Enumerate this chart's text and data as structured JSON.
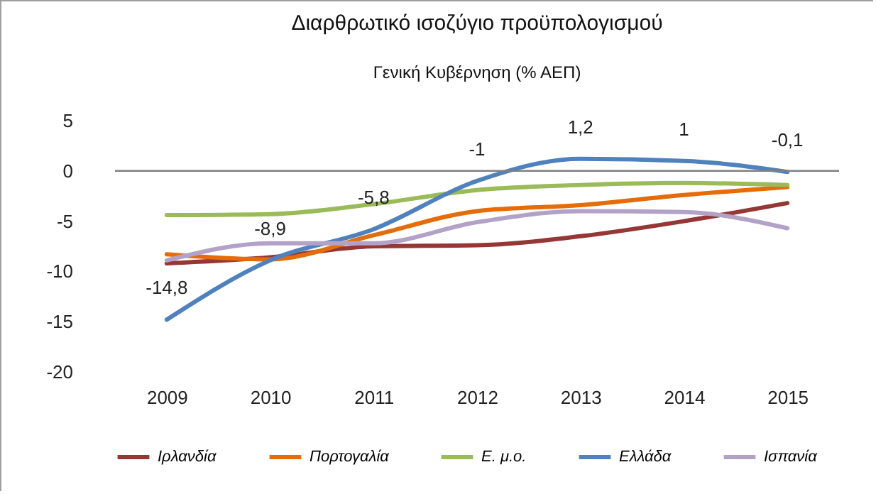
{
  "chart_data": {
    "type": "line",
    "title": "Διαρθρωτικό ισοζύγιο προϋπολογισμού",
    "subtitle": "Γενική Κυβέρνηση (% ΑΕΠ)",
    "categories": [
      "2009",
      "2010",
      "2011",
      "2012",
      "2013",
      "2014",
      "2015"
    ],
    "series": [
      {
        "name": "Ιρλανδία",
        "color": "#953735",
        "values": [
          -9.2,
          -8.6,
          -7.5,
          -7.4,
          -6.5,
          -5.0,
          -3.2
        ]
      },
      {
        "name": "Πορτογαλία",
        "color": "#e46c0a",
        "values": [
          -8.3,
          -8.8,
          -6.4,
          -4.0,
          -3.4,
          -2.4,
          -1.6
        ]
      },
      {
        "name": "Ε. μ.ο.",
        "color": "#9bbb59",
        "values": [
          -4.4,
          -4.3,
          -3.3,
          -1.9,
          -1.4,
          -1.2,
          -1.4
        ]
      },
      {
        "name": "Ελλάδα",
        "color": "#4f81bd",
        "values": [
          -14.8,
          -8.9,
          -5.8,
          -1,
          1.2,
          1,
          -0.1
        ],
        "value_labels": [
          "-14,8",
          "-8,9",
          "-5,8",
          "-1",
          "1,2",
          "1",
          "-0,1"
        ]
      },
      {
        "name": "Ισπανία",
        "color": "#b3a2c7",
        "values": [
          -8.9,
          -7.2,
          -7.2,
          -5.1,
          -4.0,
          -4.1,
          -5.7
        ]
      }
    ],
    "ylim": [
      -20,
      5
    ],
    "yticks": [
      -20,
      -15,
      -10,
      -5,
      0,
      5
    ],
    "ref_lines": [
      {
        "axis": "y",
        "value": 0,
        "color": "#808080"
      }
    ],
    "grid": false,
    "legend": "bottom",
    "marker": "none",
    "line_style": "solid"
  }
}
